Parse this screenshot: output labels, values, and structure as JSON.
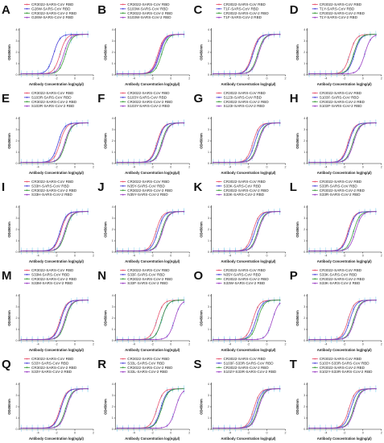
{
  "colors": {
    "c1": "#e8546e",
    "c2": "#4a40d8",
    "c3": "#3c9c3c",
    "c4": "#9a3fc4",
    "error_bar": "#8fd6f0"
  },
  "chart_data": [
    {
      "type": "line",
      "panel": "A",
      "title": "",
      "xlabel": "Antibody Concentration log(ng/μl)",
      "ylabel": "OD450nm",
      "xlim": [
        -6,
        2
      ],
      "ylim": [
        0,
        4
      ],
      "series": [
        {
          "name": "CR3022-SARS-CoV RBD",
          "color": "#e8546e",
          "ec50": -1.6
        },
        {
          "name": "G28W-SARS-CoV RBD",
          "color": "#4a40d8",
          "ec50": -2.3
        },
        {
          "name": "CR3022-SARS-CoV-2 RBD",
          "color": "#3c9c3c",
          "ec50": -1.0
        },
        {
          "name": "G28W-SARS-CoV-2 RBD",
          "color": "#9a3fc4",
          "ec50": -1.2
        }
      ]
    },
    {
      "type": "line",
      "panel": "B",
      "title": "",
      "xlabel": "Antibody Concentration log(ng/μl)",
      "ylabel": "OD450nm",
      "xlim": [
        -6,
        2
      ],
      "ylim": [
        0,
        4
      ],
      "series": [
        {
          "name": "CR3022-SARS-CoV RBD",
          "color": "#e8546e",
          "ec50": -1.4
        },
        {
          "name": "S103W-SARS-CoV RBD",
          "color": "#4a40d8",
          "ec50": -1.2
        },
        {
          "name": "CR3022-SARS-CoV-2 RBD",
          "color": "#3c9c3c",
          "ec50": -1.0
        },
        {
          "name": "S103W-SARS-CoV-2 RBD",
          "color": "#9a3fc4",
          "ec50": -1.3
        }
      ]
    },
    {
      "type": "line",
      "panel": "C",
      "title": "",
      "xlabel": "Antibody Concentration log(ng/μl)",
      "ylabel": "OD450nm",
      "xlim": [
        -6,
        2
      ],
      "ylim": [
        0,
        4
      ],
      "series": [
        {
          "name": "CR3022-SARS-CoV RBD",
          "color": "#e8546e",
          "ec50": -1.6
        },
        {
          "name": "T1F-SARS-CoV RBD",
          "color": "#4a40d8",
          "ec50": -1.5
        },
        {
          "name": "CR3022-SARS-CoV-2 RBD",
          "color": "#3c9c3c",
          "ec50": -1.0
        },
        {
          "name": "T1F-SARS-CoV-2 RBD",
          "color": "#9a3fc4",
          "ec50": -0.9
        }
      ]
    },
    {
      "type": "line",
      "panel": "D",
      "title": "",
      "xlabel": "Antibody Concentration log(ng/μl)",
      "ylabel": "OD450nm",
      "xlim": [
        -6,
        2
      ],
      "ylim": [
        0,
        4
      ],
      "series": [
        {
          "name": "CR3022-SARS-CoV RBD",
          "color": "#e8546e",
          "ec50": -1.4
        },
        {
          "name": "T1Y-SARS-CoV RBD",
          "color": "#4a40d8",
          "ec50": -0.9
        },
        {
          "name": "CR3022-SARS-CoV-2 RBD",
          "color": "#3c9c3c",
          "ec50": -1.0
        },
        {
          "name": "T1Y-SARS-CoV-2 RBD",
          "color": "#9a3fc4",
          "ec50": 0.2
        }
      ]
    },
    {
      "type": "line",
      "panel": "E",
      "title": "",
      "xlabel": "Antibody Concentration log(ng/μl)",
      "ylabel": "OD450nm",
      "xlim": [
        -6,
        2
      ],
      "ylim": [
        0,
        4
      ],
      "series": [
        {
          "name": "CR3022-SARS-CoV RBD",
          "color": "#e8546e",
          "ec50": -1.6
        },
        {
          "name": "S103R-SARS-CoV RBD",
          "color": "#4a40d8",
          "ec50": -1.8
        },
        {
          "name": "CR3022-SARS-CoV-2 RBD",
          "color": "#3c9c3c",
          "ec50": -1.0
        },
        {
          "name": "S103R-SARS-CoV-2 RBD",
          "color": "#9a3fc4",
          "ec50": -1.1
        }
      ]
    },
    {
      "type": "line",
      "panel": "F",
      "title": "",
      "xlabel": "Antibody Concentration log(ng/μl)",
      "ylabel": "OD450nm",
      "xlim": [
        -6,
        2
      ],
      "ylim": [
        0,
        4
      ],
      "series": [
        {
          "name": "CR3022-SARS-CoV RBD",
          "color": "#e8546e",
          "ec50": -1.5
        },
        {
          "name": "S103Y-SARS-CoV RBD",
          "color": "#4a40d8",
          "ec50": -1.4
        },
        {
          "name": "CR3022-SARS-CoV-2 RBD",
          "color": "#3c9c3c",
          "ec50": -1.0
        },
        {
          "name": "S103Y-SARS-CoV-2 RBD",
          "color": "#9a3fc4",
          "ec50": -0.9
        }
      ]
    },
    {
      "type": "line",
      "panel": "G",
      "title": "",
      "xlabel": "Antibody Concentration log(ng/μl)",
      "ylabel": "OD450nm",
      "xlim": [
        -6,
        2
      ],
      "ylim": [
        0,
        4
      ],
      "series": [
        {
          "name": "CR3022-SARS-CoV RBD",
          "color": "#e8546e",
          "ec50": -1.5
        },
        {
          "name": "S123I-SARS-CoV RBD",
          "color": "#4a40d8",
          "ec50": -1.3
        },
        {
          "name": "CR3022-SARS-CoV-2 RBD",
          "color": "#3c9c3c",
          "ec50": -1.0
        },
        {
          "name": "S123I-SARS-CoV-2 RBD",
          "color": "#9a3fc4",
          "ec50": -0.9
        }
      ]
    },
    {
      "type": "line",
      "panel": "H",
      "title": "",
      "xlabel": "Antibody Concentration log(ng/μl)",
      "ylabel": "OD450nm",
      "xlim": [
        -6,
        2
      ],
      "ylim": [
        0,
        4
      ],
      "series": [
        {
          "name": "CR3022-SARS-CoV RBD",
          "color": "#e8546e",
          "ec50": -1.6
        },
        {
          "name": "S103F-SARS-CoV RBD",
          "color": "#4a40d8",
          "ec50": -1.5
        },
        {
          "name": "CR3022-SARS-CoV-2 RBD",
          "color": "#3c9c3c",
          "ec50": -1.1
        },
        {
          "name": "S103F-SARS-CoV-2 RBD",
          "color": "#9a3fc4",
          "ec50": -1.0
        }
      ]
    },
    {
      "type": "line",
      "panel": "I",
      "title": "",
      "xlabel": "Antibody Concentration log(ng/μl)",
      "ylabel": "OD450nm",
      "xlim": [
        -6,
        2
      ],
      "ylim": [
        0,
        4
      ],
      "series": [
        {
          "name": "CR3022-SARS-CoV RBD",
          "color": "#e8546e",
          "ec50": -1.5
        },
        {
          "name": "S33H-SARS-CoV RBD",
          "color": "#4a40d8",
          "ec50": -1.6
        },
        {
          "name": "CR3022-SARS-CoV-2 RBD",
          "color": "#3c9c3c",
          "ec50": -1.0
        },
        {
          "name": "S33H-SARS-CoV-2 RBD",
          "color": "#9a3fc4",
          "ec50": -1.1
        }
      ]
    },
    {
      "type": "line",
      "panel": "J",
      "title": "",
      "xlabel": "Antibody Concentration log(ng/μl)",
      "ylabel": "OD450nm",
      "xlim": [
        -6,
        2
      ],
      "ylim": [
        0,
        4
      ],
      "series": [
        {
          "name": "CR3022-SARS-CoV RBD",
          "color": "#e8546e",
          "ec50": -1.6
        },
        {
          "name": "N35Y-SARS-CoV RBD",
          "color": "#4a40d8",
          "ec50": -1.4
        },
        {
          "name": "CR3022-SARS-CoV-2 RBD",
          "color": "#3c9c3c",
          "ec50": -1.0
        },
        {
          "name": "N35Y-SARS-CoV-2 RBD",
          "color": "#9a3fc4",
          "ec50": -0.9
        }
      ]
    },
    {
      "type": "line",
      "panel": "K",
      "title": "",
      "xlabel": "Antibody Concentration log(ng/μl)",
      "ylabel": "OD450nm",
      "xlim": [
        -6,
        2
      ],
      "ylim": [
        0,
        4
      ],
      "series": [
        {
          "name": "CR3022-SARS-CoV RBD",
          "color": "#e8546e",
          "ec50": -1.5
        },
        {
          "name": "S33K-SARS-CoV RBD",
          "color": "#4a40d8",
          "ec50": -1.3
        },
        {
          "name": "CR3022-SARS-CoV-2 RBD",
          "color": "#3c9c3c",
          "ec50": -1.0
        },
        {
          "name": "S33K-SARS-CoV-2 RBD",
          "color": "#9a3fc4",
          "ec50": -0.9
        }
      ]
    },
    {
      "type": "line",
      "panel": "L",
      "title": "",
      "xlabel": "Antibody Concentration log(ng/μl)",
      "ylabel": "OD450nm",
      "xlim": [
        -6,
        2
      ],
      "ylim": [
        0,
        4
      ],
      "series": [
        {
          "name": "CR3022-SARS-CoV RBD",
          "color": "#e8546e",
          "ec50": -1.6
        },
        {
          "name": "S33R-SARS-CoV RBD",
          "color": "#4a40d8",
          "ec50": -1.5
        },
        {
          "name": "CR3022-SARS-CoV-2 RBD",
          "color": "#3c9c3c",
          "ec50": -1.0
        },
        {
          "name": "S33R-SARS-CoV-2 RBD",
          "color": "#9a3fc4",
          "ec50": -0.8
        }
      ]
    },
    {
      "type": "line",
      "panel": "M",
      "title": "",
      "xlabel": "Antibody Concentration log(ng/μl)",
      "ylabel": "OD450nm",
      "xlim": [
        -6,
        2
      ],
      "ylim": [
        0,
        4
      ],
      "series": [
        {
          "name": "CR3022-SARS-CoV RBD",
          "color": "#e8546e",
          "ec50": -1.6
        },
        {
          "name": "S33M-SARS-CoV RBD",
          "color": "#4a40d8",
          "ec50": -1.5
        },
        {
          "name": "CR3022-SARS-CoV-2 RBD",
          "color": "#3c9c3c",
          "ec50": -1.0
        },
        {
          "name": "S33M-SARS-CoV-2 RBD",
          "color": "#9a3fc4",
          "ec50": -1.1
        }
      ]
    },
    {
      "type": "line",
      "panel": "N",
      "title": "",
      "xlabel": "Antibody Concentration log(ng/μl)",
      "ylabel": "OD450nm",
      "xlim": [
        -6,
        2
      ],
      "ylim": [
        0,
        4
      ],
      "series": [
        {
          "name": "CR3022-SARS-CoV RBD",
          "color": "#e8546e",
          "ec50": -1.5
        },
        {
          "name": "S33F-SARS-CoV RBD",
          "color": "#4a40d8",
          "ec50": -1.0
        },
        {
          "name": "CR3022-SARS-CoV-2 RBD",
          "color": "#3c9c3c",
          "ec50": -1.0
        },
        {
          "name": "S33F-SARS-CoV-2 RBD",
          "color": "#9a3fc4",
          "ec50": 0.4
        }
      ]
    },
    {
      "type": "line",
      "panel": "O",
      "title": "",
      "xlabel": "Antibody Concentration log(ng/μl)",
      "ylabel": "OD450nm",
      "xlim": [
        -6,
        2
      ],
      "ylim": [
        0,
        4
      ],
      "series": [
        {
          "name": "CR3022-SARS-CoV RBD",
          "color": "#e8546e",
          "ec50": -1.5
        },
        {
          "name": "N35Y-SARS-CoV RBD",
          "color": "#4a40d8",
          "ec50": -1.2
        },
        {
          "name": "CR3022-SARS-CoV-2 RBD",
          "color": "#3c9c3c",
          "ec50": -1.0
        },
        {
          "name": "S33W-SARS-CoV-2 RBD",
          "color": "#9a3fc4",
          "ec50": 0.6
        }
      ]
    },
    {
      "type": "line",
      "panel": "P",
      "title": "",
      "xlabel": "Antibody Concentration log(ng/μl)",
      "ylabel": "OD450nm",
      "xlim": [
        -6,
        2
      ],
      "ylim": [
        0,
        4
      ],
      "series": [
        {
          "name": "CR3022-SARS-CoV RBD",
          "color": "#e8546e",
          "ec50": -1.6
        },
        {
          "name": "S33K-SARS-CoV RBD",
          "color": "#4a40d8",
          "ec50": -1.4
        },
        {
          "name": "CR3022-SARS-CoV-2 RBD",
          "color": "#3c9c3c",
          "ec50": -1.0
        },
        {
          "name": "S33K-SARS-CoV-2 RBD",
          "color": "#9a3fc4",
          "ec50": -0.9
        }
      ]
    },
    {
      "type": "line",
      "panel": "Q",
      "title": "",
      "xlabel": "Antibody Concentration log(ng/μl)",
      "ylabel": "OD450nm",
      "xlim": [
        -6,
        2
      ],
      "ylim": [
        0,
        4
      ],
      "series": [
        {
          "name": "CR3022-SARS-CoV RBD",
          "color": "#e8546e",
          "ec50": -1.6
        },
        {
          "name": "S33Y-SARS-CoV RBD",
          "color": "#4a40d8",
          "ec50": -1.5
        },
        {
          "name": "CR3022-SARS-CoV-2 RBD",
          "color": "#3c9c3c",
          "ec50": -1.0
        },
        {
          "name": "S33Y-SARS-CoV-2 RBD",
          "color": "#9a3fc4",
          "ec50": -0.9
        }
      ]
    },
    {
      "type": "line",
      "panel": "R",
      "title": "",
      "xlabel": "Antibody Concentration log(ng/μl)",
      "ylabel": "OD450nm",
      "xlim": [
        -6,
        2
      ],
      "ylim": [
        0,
        4
      ],
      "series": [
        {
          "name": "CR3022-SARS-CoV RBD",
          "color": "#e8546e",
          "ec50": -1.5
        },
        {
          "name": "S33L-SARS-CoV RBD",
          "color": "#4a40d8",
          "ec50": -1.1
        },
        {
          "name": "CR3022-SARS-CoV-2 RBD",
          "color": "#3c9c3c",
          "ec50": -1.0
        },
        {
          "name": "S33L-SARS-CoV-2 RBD",
          "color": "#9a3fc4",
          "ec50": 0.5
        }
      ]
    },
    {
      "type": "line",
      "panel": "S",
      "title": "",
      "xlabel": "Antibody Concentration log(ng/μl)",
      "ylabel": "OD450nm",
      "xlim": [
        -6,
        2
      ],
      "ylim": [
        0,
        4
      ],
      "series": [
        {
          "name": "CR3022-SARS-CoV RBD",
          "color": "#e8546e",
          "ec50": -1.4
        },
        {
          "name": "S103F-S33R-SARS-CoV RBD",
          "color": "#4a40d8",
          "ec50": -1.2
        },
        {
          "name": "CR3022-SARS-CoV-2 RBD",
          "color": "#3c9c3c",
          "ec50": -1.0
        },
        {
          "name": "S102Y-S33R-SARS-CoV-2 RBD",
          "color": "#9a3fc4",
          "ec50": -0.9
        }
      ]
    },
    {
      "type": "line",
      "panel": "T",
      "title": "",
      "xlabel": "Antibody Concentration log(ng/μl)",
      "ylabel": "OD450nm",
      "xlim": [
        -6,
        2
      ],
      "ylim": [
        0,
        4
      ],
      "series": [
        {
          "name": "CR3022-SARS-CoV RBD",
          "color": "#e8546e",
          "ec50": -1.5
        },
        {
          "name": "S103Y-S33R-SARS-CoV RBD",
          "color": "#4a40d8",
          "ec50": -1.3
        },
        {
          "name": "CR3022-SARS-CoV-2 RBD",
          "color": "#3c9c3c",
          "ec50": -1.0
        },
        {
          "name": "S102Y-S33R-SARS-CoV-2 RBD",
          "color": "#9a3fc4",
          "ec50": -0.9
        }
      ]
    }
  ]
}
